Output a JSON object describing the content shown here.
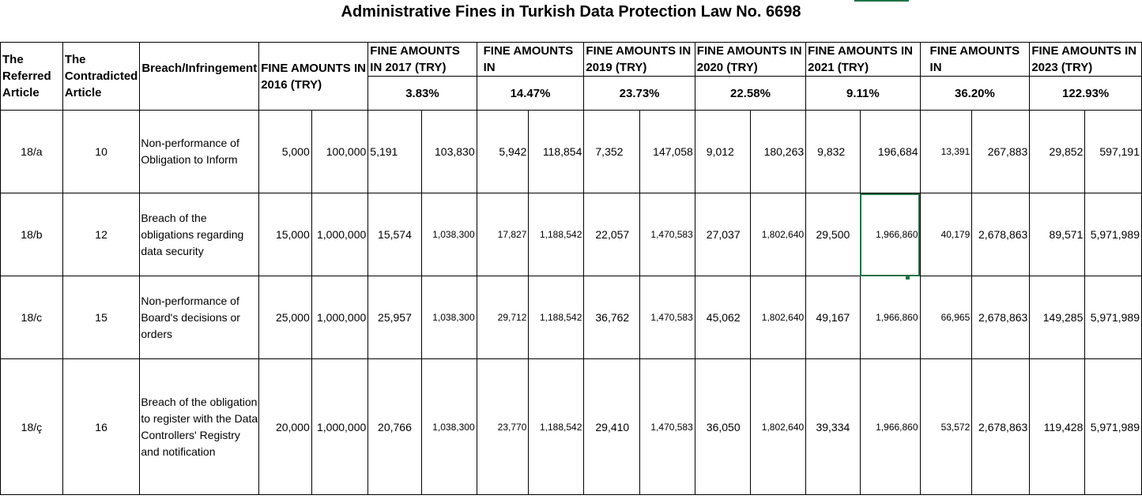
{
  "title": "Administrative Fines in Turkish Data Protection Law No. 6698",
  "headers": {
    "referred_article": "The Referred Article",
    "contradicted_article": "The Contradicted Article",
    "breach": "Breach/Infringement",
    "y2016": "FINE AMOUNTS IN 2016 (TRY)",
    "y2017": "FINE AMOUNTS IN 2017 (TRY)",
    "y2018": "FINE AMOUNTS IN",
    "y2019": "FINE AMOUNTS IN 2019 (TRY)",
    "y2020": "FINE AMOUNTS IN 2020 (TRY)",
    "y2021": "FINE AMOUNTS IN 2021 (TRY)",
    "y2022": "FINE AMOUNTS IN",
    "y2023": "FINE AMOUNTS IN 2023 (TRY)"
  },
  "rates": {
    "y2017": "3.83%",
    "y2018": "14.47%",
    "y2019": "23.73%",
    "y2020": "22.58%",
    "y2021": "9.11%",
    "y2022": "36.20%",
    "y2023": "122.93%"
  },
  "rows": [
    {
      "referred": "18/a",
      "contradicted": "10",
      "breach": "Non-performance of Obligation to Inform",
      "y2016": [
        "5,000",
        "100,000"
      ],
      "y2017": [
        "5,191",
        "103,830"
      ],
      "y2018": [
        "5,942",
        "118,854"
      ],
      "y2019": [
        "7,352",
        "147,058"
      ],
      "y2020": [
        "9,012",
        "180,263"
      ],
      "y2021": [
        "9,832",
        "196,684"
      ],
      "y2022": [
        "13,391",
        "267,883"
      ],
      "y2023": [
        "29,852",
        "597,191"
      ]
    },
    {
      "referred": "18/b",
      "contradicted": "12",
      "breach": "Breach of the obligations regarding data security",
      "y2016": [
        "15,000",
        "1,000,000"
      ],
      "y2017": [
        "15,574",
        "1,038,300"
      ],
      "y2018": [
        "17,827",
        "1,188,542"
      ],
      "y2019": [
        "22,057",
        "1,470,583"
      ],
      "y2020": [
        "27,037",
        "1,802,640"
      ],
      "y2021": [
        "29,500",
        "1,966,860"
      ],
      "y2022": [
        "40,179",
        "2,678,863"
      ],
      "y2023": [
        "89,571",
        "5,971,989"
      ]
    },
    {
      "referred": "18/c",
      "contradicted": "15",
      "breach": "Non-performance of Board's decisions or orders",
      "y2016": [
        "25,000",
        "1,000,000"
      ],
      "y2017": [
        "25,957",
        "1,038,300"
      ],
      "y2018": [
        "29,712",
        "1,188,542"
      ],
      "y2019": [
        "36,762",
        "1,470,583"
      ],
      "y2020": [
        "45,062",
        "1,802,640"
      ],
      "y2021": [
        "49,167",
        "1,966,860"
      ],
      "y2022": [
        "66,965",
        "2,678,863"
      ],
      "y2023": [
        "149,285",
        "5,971,989"
      ]
    },
    {
      "referred": "18/ç",
      "contradicted": "16",
      "breach": "Breach of the obligation to register with the Data Controllers' Registry and notification",
      "y2016": [
        "20,000",
        "1,000,000"
      ],
      "y2017": [
        "20,766",
        "1,038,300"
      ],
      "y2018": [
        "23,770",
        "1,188,542"
      ],
      "y2019": [
        "29,410",
        "1,470,583"
      ],
      "y2020": [
        "36,050",
        "1,802,640"
      ],
      "y2021": [
        "39,334",
        "1,966,860"
      ],
      "y2022": [
        "53,572",
        "2,678,863"
      ],
      "y2023": [
        "119,428",
        "5,971,989"
      ]
    }
  ]
}
